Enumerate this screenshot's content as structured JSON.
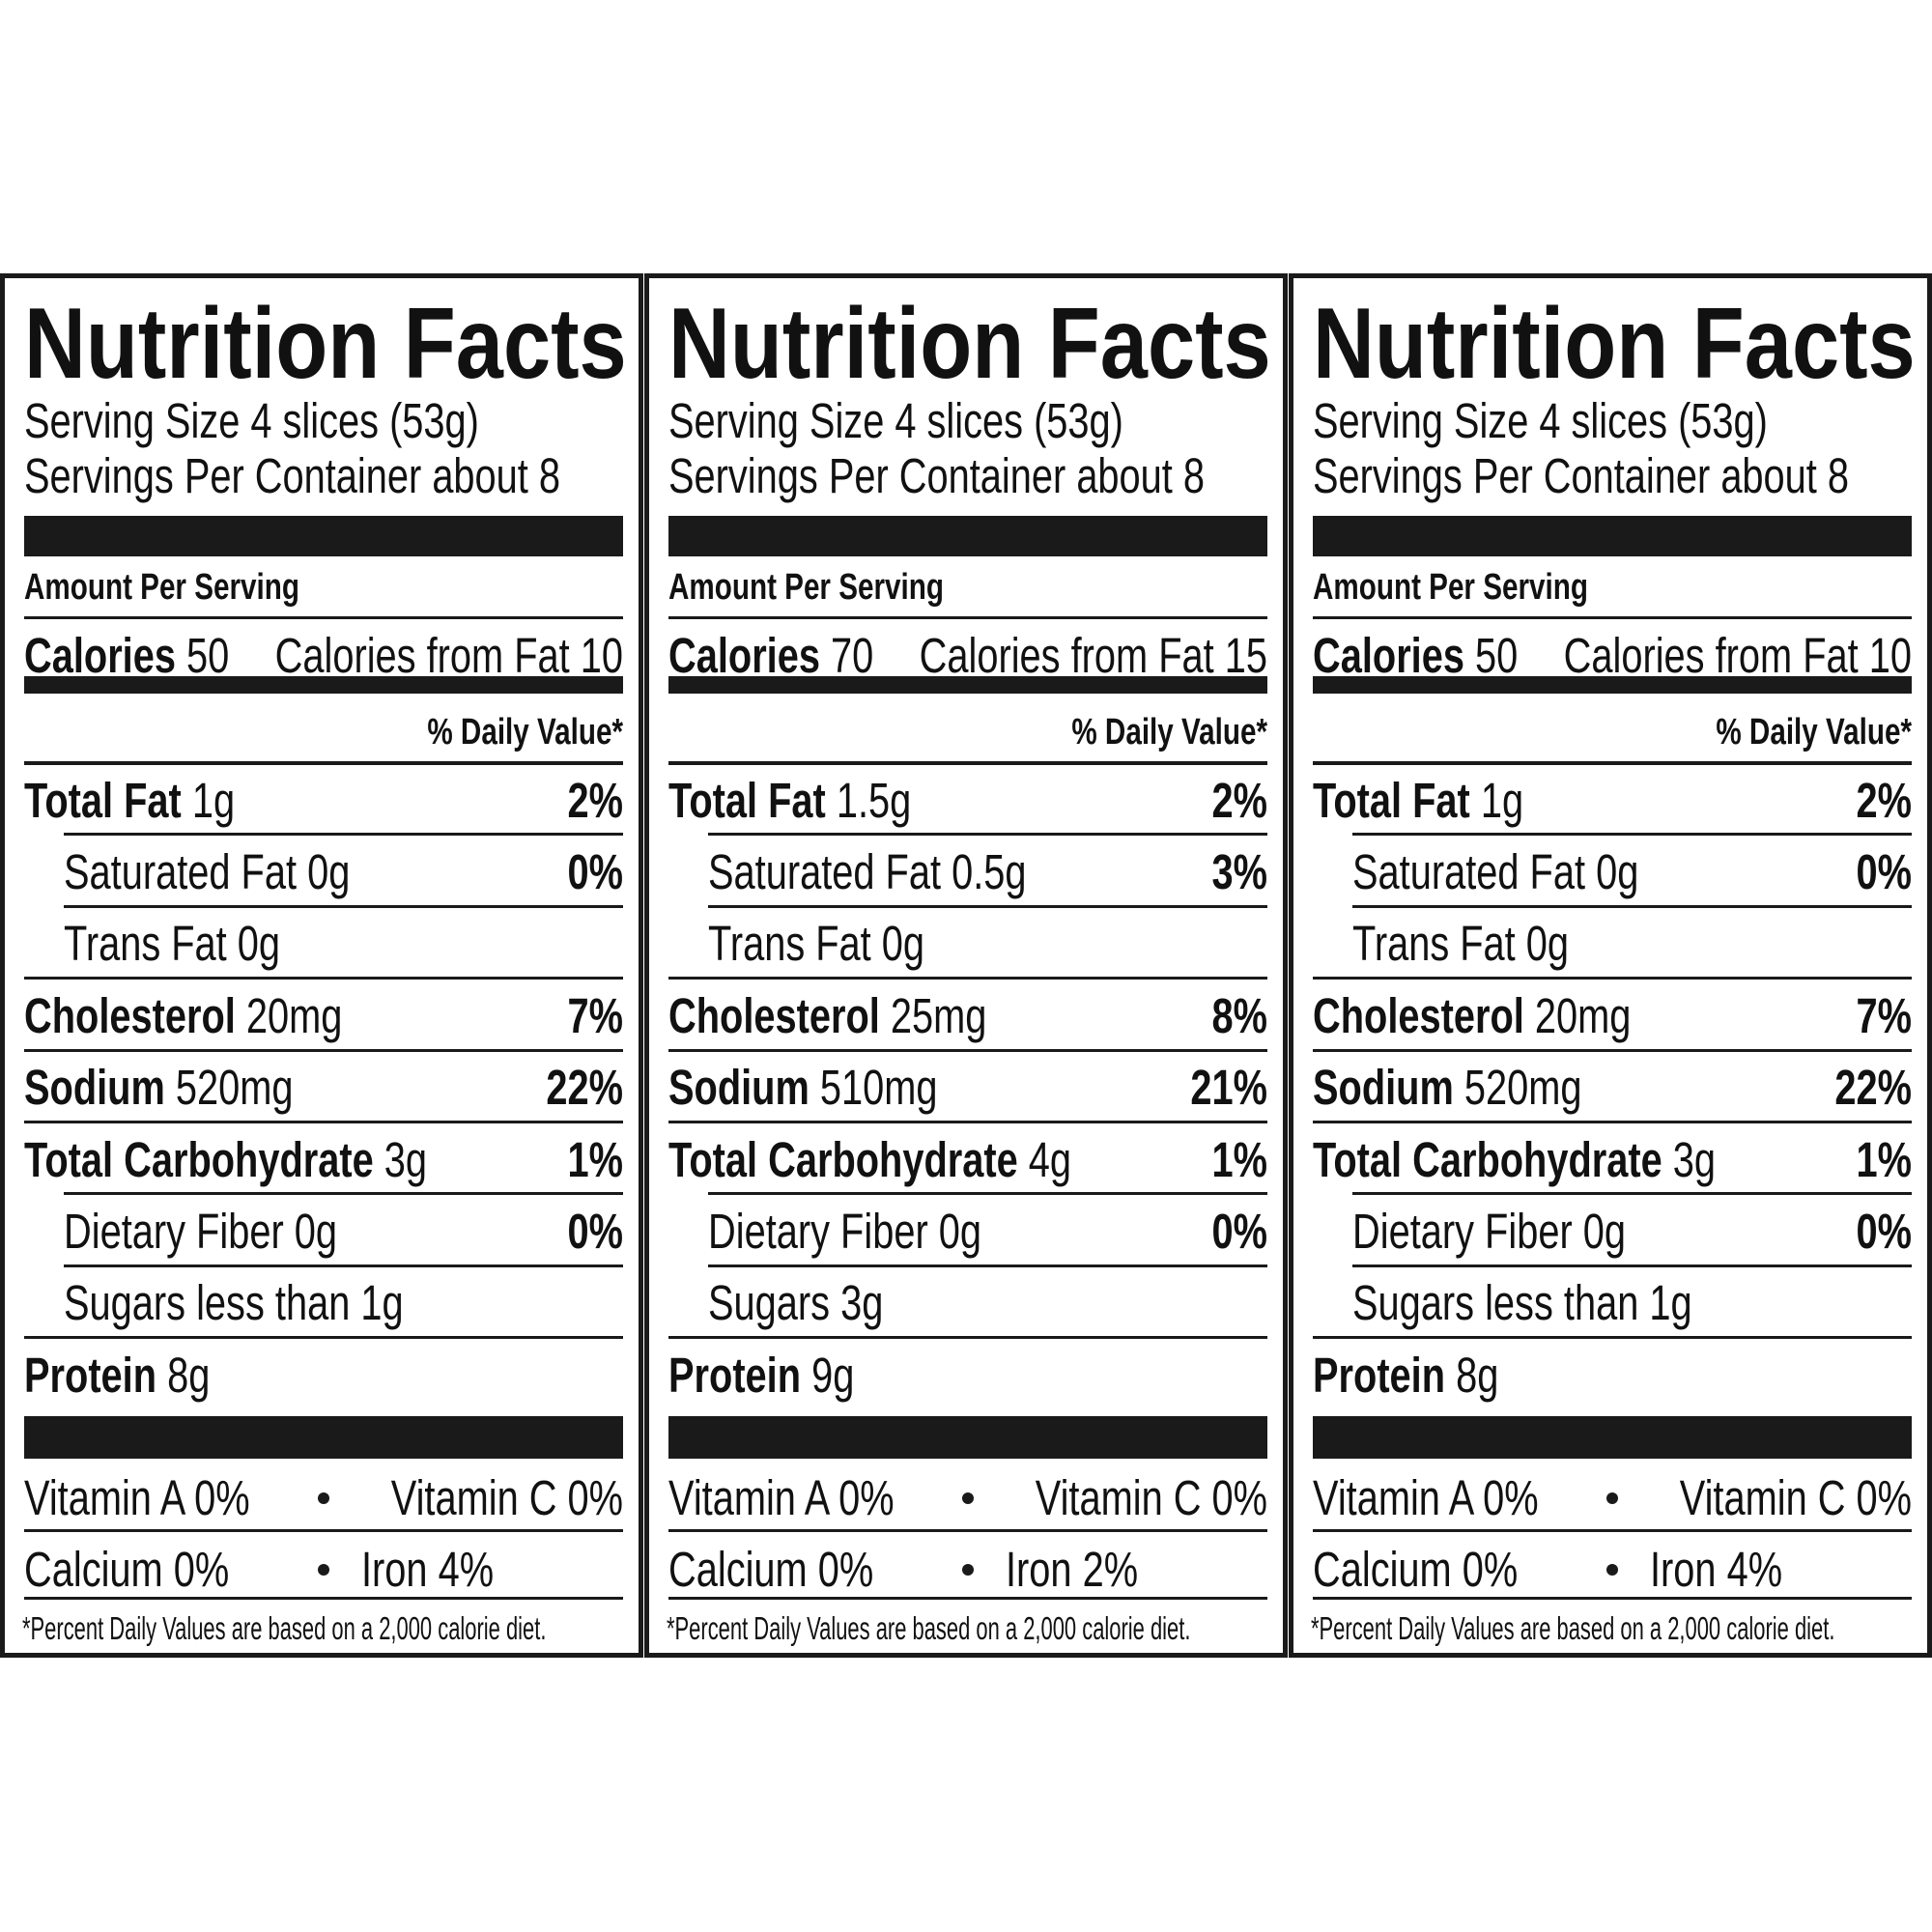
{
  "panels": [
    {
      "title": "Nutrition Facts",
      "serving_size": "Serving Size 4 slices (53g)",
      "servings_per_container": "Servings Per Container about 8",
      "amount_per_serving": "Amount Per Serving",
      "calories_label": "Calories",
      "calories": "50",
      "calories_from_fat": "Calories from Fat 10",
      "daily_value_header": "% Daily Value*",
      "rows": [
        {
          "name": "Total Fat",
          "amount": "1g",
          "dv": "2%",
          "bold": true,
          "indent": false
        },
        {
          "name": "Saturated Fat",
          "amount": "0g",
          "dv": "0%",
          "bold": false,
          "indent": true
        },
        {
          "name": "Trans Fat",
          "amount": "0g",
          "bold": false,
          "indent": true
        },
        {
          "name": "Cholesterol",
          "amount": "20mg",
          "dv": "7%",
          "bold": true,
          "indent": false
        },
        {
          "name": "Sodium",
          "amount": "520mg",
          "dv": "22%",
          "bold": true,
          "indent": false
        },
        {
          "name": "Total Carbohydrate",
          "amount": "3g",
          "dv": "1%",
          "bold": true,
          "indent": false
        },
        {
          "name": "Dietary Fiber",
          "amount": "0g",
          "dv": "0%",
          "bold": false,
          "indent": true
        },
        {
          "name": "Sugars",
          "amount": "less than 1g",
          "bold": false,
          "indent": true
        },
        {
          "name": "Protein",
          "amount": "8g",
          "bold": true,
          "indent": false
        }
      ],
      "vitamins": [
        [
          "Vitamin A 0%",
          "Vitamin C 0%"
        ],
        [
          "Calcium 0%",
          "Iron 4%"
        ]
      ],
      "footnote": "*Percent Daily Values are based on a 2,000 calorie diet."
    },
    {
      "title": "Nutrition Facts",
      "serving_size": "Serving Size 4 slices (53g)",
      "servings_per_container": "Servings Per Container about 8",
      "amount_per_serving": "Amount Per Serving",
      "calories_label": "Calories",
      "calories": "70",
      "calories_from_fat": "Calories from Fat 15",
      "daily_value_header": "% Daily Value*",
      "rows": [
        {
          "name": "Total Fat",
          "amount": "1.5g",
          "dv": "2%",
          "bold": true,
          "indent": false
        },
        {
          "name": "Saturated Fat",
          "amount": "0.5g",
          "dv": "3%",
          "bold": false,
          "indent": true
        },
        {
          "name": "Trans Fat",
          "amount": "0g",
          "bold": false,
          "indent": true
        },
        {
          "name": "Cholesterol",
          "amount": "25mg",
          "dv": "8%",
          "bold": true,
          "indent": false
        },
        {
          "name": "Sodium",
          "amount": "510mg",
          "dv": "21%",
          "bold": true,
          "indent": false
        },
        {
          "name": "Total Carbohydrate",
          "amount": "4g",
          "dv": "1%",
          "bold": true,
          "indent": false
        },
        {
          "name": "Dietary Fiber",
          "amount": "0g",
          "dv": "0%",
          "bold": false,
          "indent": true
        },
        {
          "name": "Sugars",
          "amount": "3g",
          "bold": false,
          "indent": true
        },
        {
          "name": "Protein",
          "amount": "9g",
          "bold": true,
          "indent": false
        }
      ],
      "vitamins": [
        [
          "Vitamin A 0%",
          "Vitamin C 0%"
        ],
        [
          "Calcium 0%",
          "Iron 2%"
        ]
      ],
      "footnote": "*Percent Daily Values are based on a 2,000 calorie diet."
    },
    {
      "title": "Nutrition Facts",
      "serving_size": "Serving Size 4 slices (53g)",
      "servings_per_container": "Servings Per Container about 8",
      "amount_per_serving": "Amount Per Serving",
      "calories_label": "Calories",
      "calories": "50",
      "calories_from_fat": "Calories from Fat 10",
      "daily_value_header": "% Daily Value*",
      "rows": [
        {
          "name": "Total Fat",
          "amount": "1g",
          "dv": "2%",
          "bold": true,
          "indent": false
        },
        {
          "name": "Saturated Fat",
          "amount": "0g",
          "dv": "0%",
          "bold": false,
          "indent": true
        },
        {
          "name": "Trans Fat",
          "amount": "0g",
          "bold": false,
          "indent": true
        },
        {
          "name": "Cholesterol",
          "amount": "20mg",
          "dv": "7%",
          "bold": true,
          "indent": false
        },
        {
          "name": "Sodium",
          "amount": "520mg",
          "dv": "22%",
          "bold": true,
          "indent": false
        },
        {
          "name": "Total Carbohydrate",
          "amount": "3g",
          "dv": "1%",
          "bold": true,
          "indent": false
        },
        {
          "name": "Dietary Fiber",
          "amount": "0g",
          "dv": "0%",
          "bold": false,
          "indent": true
        },
        {
          "name": "Sugars",
          "amount": "less than 1g",
          "bold": false,
          "indent": true
        },
        {
          "name": "Protein",
          "amount": "8g",
          "bold": true,
          "indent": false
        }
      ],
      "vitamins": [
        [
          "Vitamin A 0%",
          "Vitamin C 0%"
        ],
        [
          "Calcium 0%",
          "Iron 4%"
        ]
      ],
      "footnote": "*Percent Daily Values are based on a 2,000 calorie diet."
    }
  ]
}
